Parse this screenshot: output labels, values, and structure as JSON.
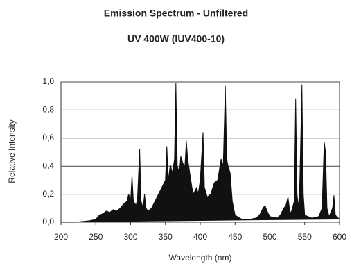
{
  "chart_data": {
    "type": "area",
    "title": "Emission Spectrum - Unfiltered",
    "subtitle": "UV 400W (IUV400-10)",
    "x_label": "Wavelength (nm)",
    "y_label": "Relative Intensity",
    "color": "#111111",
    "grid": true,
    "xlim": [
      200,
      600
    ],
    "ylim": [
      0,
      1
    ],
    "xticks": [
      200,
      250,
      300,
      350,
      400,
      450,
      500,
      550,
      600
    ],
    "yticks": [
      {
        "value": 0,
        "label": "0,0"
      },
      {
        "value": 0.2,
        "label": "0,2"
      },
      {
        "value": 0.4,
        "label": "0,4"
      },
      {
        "value": 0.6,
        "label": "0,6"
      },
      {
        "value": 0.8,
        "label": "0,8"
      },
      {
        "value": 1,
        "label": "1,0"
      }
    ],
    "x": [
      200,
      210,
      220,
      230,
      240,
      250,
      255,
      260,
      265,
      270,
      275,
      280,
      285,
      290,
      295,
      297,
      300,
      302,
      304,
      308,
      310,
      313,
      315,
      318,
      320,
      322,
      325,
      330,
      335,
      340,
      345,
      350,
      352,
      354,
      357,
      360,
      363,
      365,
      367,
      370,
      372,
      375,
      378,
      380,
      382,
      385,
      388,
      390,
      395,
      397,
      400,
      404,
      406,
      410,
      415,
      420,
      425,
      430,
      433,
      436,
      438,
      440,
      443,
      446,
      450,
      460,
      470,
      480,
      485,
      490,
      493,
      496,
      500,
      510,
      515,
      520,
      523,
      526,
      528,
      530,
      535,
      537,
      539,
      541,
      543,
      546,
      548,
      550,
      560,
      570,
      575,
      578,
      580,
      582,
      585,
      590,
      592,
      594,
      600
    ],
    "values": [
      0,
      0,
      0,
      0.005,
      0.01,
      0.02,
      0.05,
      0.06,
      0.08,
      0.07,
      0.09,
      0.08,
      0.1,
      0.13,
      0.15,
      0.2,
      0.16,
      0.33,
      0.15,
      0.12,
      0.18,
      0.52,
      0.15,
      0.1,
      0.2,
      0.1,
      0.08,
      0.1,
      0.15,
      0.2,
      0.25,
      0.3,
      0.54,
      0.3,
      0.41,
      0.35,
      0.45,
      0.99,
      0.4,
      0.35,
      0.47,
      0.42,
      0.4,
      0.58,
      0.45,
      0.35,
      0.25,
      0.2,
      0.25,
      0.2,
      0.3,
      0.64,
      0.25,
      0.18,
      0.2,
      0.28,
      0.3,
      0.45,
      0.4,
      0.97,
      0.45,
      0.4,
      0.35,
      0.15,
      0.05,
      0.02,
      0.02,
      0.03,
      0.05,
      0.1,
      0.12,
      0.08,
      0.04,
      0.03,
      0.05,
      0.1,
      0.12,
      0.18,
      0.1,
      0.06,
      0.15,
      0.88,
      0.2,
      0.1,
      0.3,
      0.98,
      0.2,
      0.05,
      0.03,
      0.04,
      0.1,
      0.57,
      0.5,
      0.1,
      0.04,
      0.1,
      0.19,
      0.05,
      0.02
    ]
  }
}
